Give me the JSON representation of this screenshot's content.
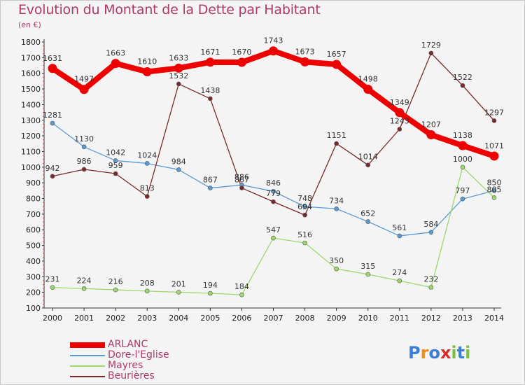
{
  "title": "Evolution du Montant de la Dette par Habitant",
  "subtitle": "(en €)",
  "logo": "Proxiti",
  "chart_data": {
    "type": "line",
    "title": "Evolution du Montant de la Dette par Habitant",
    "subtitle": "(en €)",
    "xlabel": "",
    "ylabel": "",
    "x": [
      2000,
      2001,
      2002,
      2003,
      2004,
      2005,
      2006,
      2007,
      2008,
      2009,
      2010,
      2011,
      2012,
      2013,
      2014
    ],
    "ylim": [
      100,
      1800
    ],
    "yticks": [
      100,
      200,
      300,
      400,
      500,
      600,
      700,
      800,
      900,
      1000,
      1100,
      1200,
      1300,
      1400,
      1500,
      1600,
      1700,
      1800
    ],
    "grid": false,
    "legend_position": "bottom-left",
    "series": [
      {
        "name": "ARLANC",
        "color": "#ee0000",
        "emphasis": true,
        "values": [
          1631,
          1497,
          1663,
          1610,
          1633,
          1671,
          1670,
          1743,
          1673,
          1657,
          1498,
          1349,
          1207,
          1138,
          1071
        ]
      },
      {
        "name": "Dore-l'Eglise",
        "color": "#5b9bd5",
        "values": [
          1281,
          1130,
          1042,
          1024,
          984,
          867,
          886,
          846,
          748,
          734,
          652,
          561,
          584,
          797,
          850
        ]
      },
      {
        "name": "Mayres",
        "color": "#9cd86c",
        "values": [
          231,
          224,
          216,
          208,
          201,
          194,
          184,
          547,
          516,
          350,
          315,
          274,
          232,
          1000,
          805
        ]
      },
      {
        "name": "Beurières",
        "color": "#7a2a2a",
        "values": [
          942,
          986,
          959,
          813,
          1532,
          1438,
          867,
          779,
          694,
          1151,
          1014,
          1243,
          1729,
          1522,
          1297
        ]
      }
    ]
  }
}
